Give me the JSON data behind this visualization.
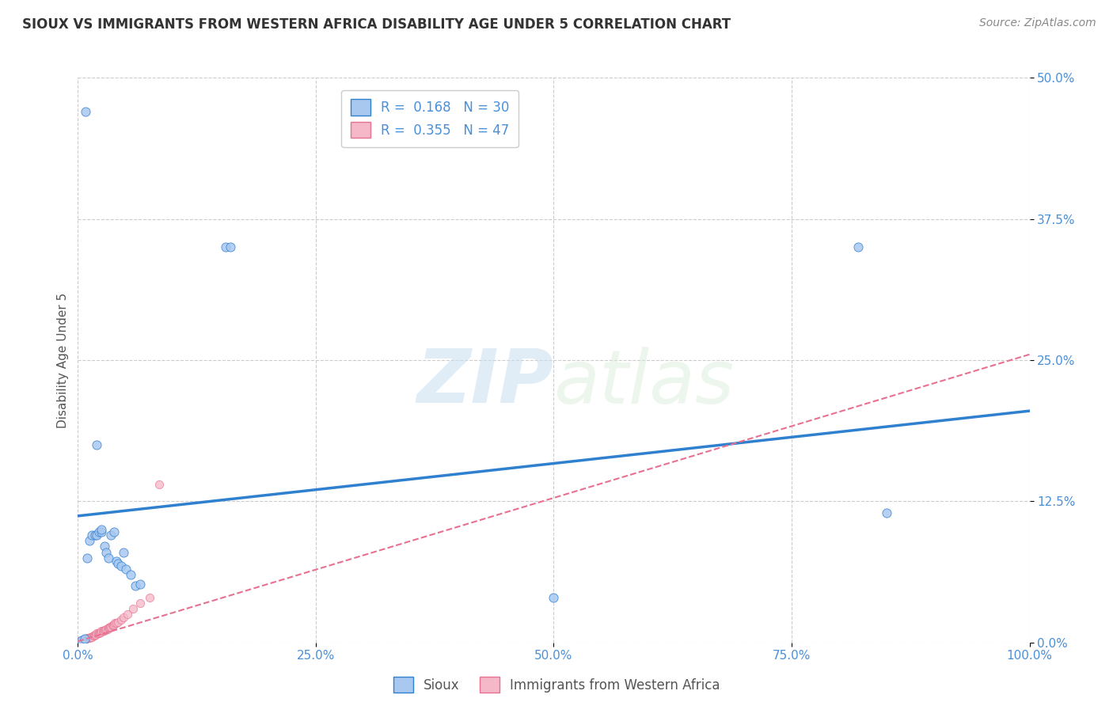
{
  "title": "SIOUX VS IMMIGRANTS FROM WESTERN AFRICA DISABILITY AGE UNDER 5 CORRELATION CHART",
  "source": "Source: ZipAtlas.com",
  "ylabel": "Disability Age Under 5",
  "xlim": [
    0,
    1.0
  ],
  "ylim": [
    0,
    0.5
  ],
  "yticks": [
    0,
    0.125,
    0.25,
    0.375,
    0.5
  ],
  "ytick_labels": [
    "0.0%",
    "12.5%",
    "25.0%",
    "37.5%",
    "50.0%"
  ],
  "xticks": [
    0,
    0.25,
    0.5,
    0.75,
    1.0
  ],
  "xtick_labels": [
    "0.0%",
    "25.0%",
    "50.0%",
    "75.0%",
    "100.0%"
  ],
  "legend_r1": "R =  0.168",
  "legend_n1": "N = 30",
  "legend_r2": "R =  0.355",
  "legend_n2": "N = 47",
  "sioux_color": "#a8c8f0",
  "immigrants_color": "#f4b8c8",
  "line1_color": "#3080d0",
  "line2_color": "#e87090",
  "watermark_text": "ZIPatlas",
  "sioux_points_x": [
    0.004,
    0.007,
    0.01,
    0.012,
    0.015,
    0.018,
    0.02,
    0.022,
    0.025,
    0.025,
    0.028,
    0.03,
    0.032,
    0.035,
    0.038,
    0.04,
    0.042,
    0.045,
    0.048,
    0.05,
    0.055,
    0.06,
    0.065,
    0.155,
    0.16,
    0.5,
    0.82,
    0.85,
    0.008,
    0.02
  ],
  "sioux_points_y": [
    0.002,
    0.003,
    0.075,
    0.09,
    0.095,
    0.095,
    0.095,
    0.098,
    0.098,
    0.1,
    0.085,
    0.08,
    0.075,
    0.095,
    0.098,
    0.072,
    0.07,
    0.068,
    0.08,
    0.065,
    0.06,
    0.05,
    0.052,
    0.35,
    0.35,
    0.04,
    0.35,
    0.115,
    0.47,
    0.175
  ],
  "immigrants_points_x": [
    0.002,
    0.003,
    0.004,
    0.005,
    0.006,
    0.007,
    0.008,
    0.009,
    0.01,
    0.011,
    0.012,
    0.013,
    0.014,
    0.015,
    0.016,
    0.017,
    0.018,
    0.019,
    0.02,
    0.021,
    0.022,
    0.023,
    0.024,
    0.025,
    0.026,
    0.027,
    0.028,
    0.029,
    0.03,
    0.031,
    0.032,
    0.033,
    0.034,
    0.035,
    0.036,
    0.037,
    0.038,
    0.039,
    0.04,
    0.042,
    0.045,
    0.048,
    0.052,
    0.058,
    0.065,
    0.075,
    0.085
  ],
  "immigrants_points_y": [
    0.001,
    0.001,
    0.002,
    0.002,
    0.002,
    0.003,
    0.003,
    0.003,
    0.004,
    0.004,
    0.004,
    0.005,
    0.005,
    0.005,
    0.006,
    0.006,
    0.007,
    0.007,
    0.008,
    0.008,
    0.008,
    0.009,
    0.009,
    0.01,
    0.01,
    0.01,
    0.011,
    0.011,
    0.012,
    0.012,
    0.013,
    0.013,
    0.014,
    0.014,
    0.015,
    0.015,
    0.016,
    0.017,
    0.017,
    0.018,
    0.02,
    0.022,
    0.025,
    0.03,
    0.035,
    0.04,
    0.14
  ],
  "sioux_line_x": [
    0.0,
    1.0
  ],
  "sioux_line_y": [
    0.112,
    0.205
  ],
  "immigrants_line_x": [
    0.0,
    1.0
  ],
  "immigrants_line_y": [
    0.001,
    0.255
  ],
  "background_color": "#ffffff",
  "grid_color": "#cccccc"
}
